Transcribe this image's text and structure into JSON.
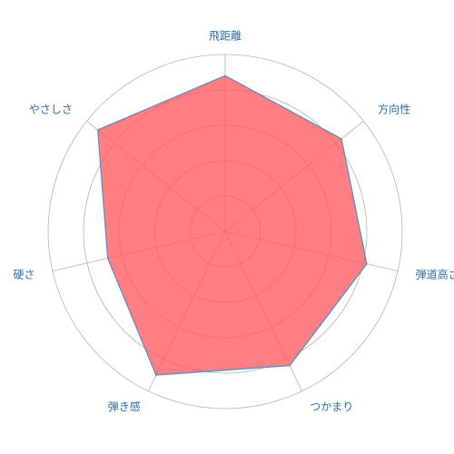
{
  "chart_data": {
    "type": "radar",
    "title": "",
    "axes": [
      "飛距離",
      "方向性",
      "弾道高さ",
      "つかまり",
      "弾き感",
      "硬さ",
      "やさしさ"
    ],
    "range": [
      0,
      5
    ],
    "grid_levels": 5,
    "series": [
      {
        "values": [
          4.4,
          4.2,
          4.1,
          4.2,
          4.5,
          3.4,
          4.6
        ]
      }
    ],
    "colors": {
      "fill": "#ff5a5f",
      "stroke": "#5b8fc7",
      "grid": "#b5b5b5",
      "label": "#2c6fa8"
    }
  }
}
